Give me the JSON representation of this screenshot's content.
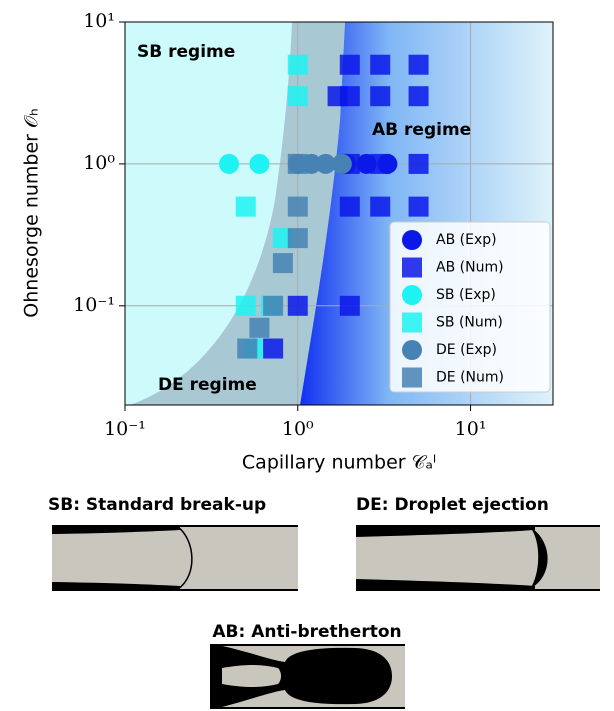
{
  "chart_data": {
    "type": "scatter",
    "xlabel": "Capillary number 𝒞ₐˡ",
    "ylabel": "Ohnesorge number 𝒪ₕ",
    "xscale": "log",
    "yscale": "log",
    "grid": true,
    "legend": "lower right",
    "xlim": [
      0.1,
      30
    ],
    "ylim": [
      0.02,
      10
    ],
    "xticks": [
      {
        "value": 0.1,
        "label": "10⁻¹"
      },
      {
        "value": 1,
        "label": "10⁰"
      },
      {
        "value": 10,
        "label": "10¹"
      }
    ],
    "yticks": [
      {
        "value": 0.1,
        "label": "10⁻¹"
      },
      {
        "value": 1,
        "label": "10⁰"
      },
      {
        "value": 10,
        "label": "10¹"
      }
    ],
    "annotations": [
      "SB regime",
      "AB regime",
      "DE regime"
    ],
    "series": [
      {
        "name": "AB (Exp)",
        "color": "#0a18e8",
        "marker": "circle",
        "x": [
          1.9,
          2.5,
          3.3
        ],
        "y": [
          1,
          1,
          1
        ]
      },
      {
        "name": "AB (Num)",
        "color": "#0a18e8",
        "marker": "square",
        "x": [
          2,
          3,
          5,
          1.7,
          2,
          3,
          5,
          2,
          3,
          5,
          2,
          3,
          5,
          1.0,
          2,
          0.72
        ],
        "y": [
          5,
          5,
          5,
          3,
          3,
          3,
          3,
          1,
          1,
          1,
          0.5,
          0.5,
          0.5,
          0.1,
          0.1,
          0.05
        ]
      },
      {
        "name": "SB (Exp)",
        "color": "#1ef2f2",
        "marker": "circle",
        "x": [
          0.4,
          0.6
        ],
        "y": [
          1,
          1
        ]
      },
      {
        "name": "SB (Num)",
        "color": "#1ef2f2",
        "marker": "square",
        "x": [
          1,
          1,
          0.5,
          0.82,
          0.5,
          0.7,
          0.55
        ],
        "y": [
          5,
          3,
          0.5,
          0.3,
          0.1,
          0.1,
          0.05
        ]
      },
      {
        "name": "DE (Exp)",
        "color": "#4682b4",
        "marker": "circle",
        "x": [
          1.0,
          1.2,
          1.45,
          1.8
        ],
        "y": [
          1,
          1,
          1,
          1
        ]
      },
      {
        "name": "DE (Num)",
        "color": "#4682b4",
        "marker": "square",
        "x": [
          1.0,
          1.0,
          0.82,
          0.72,
          0.6,
          0.51,
          1.0
        ],
        "y": [
          0.5,
          0.3,
          0.2,
          0.1,
          0.07,
          0.05,
          1.0
        ]
      }
    ]
  },
  "panels": [
    {
      "title": "SB: Standard break-up"
    },
    {
      "title": "DE: Droplet ejection"
    },
    {
      "title": "AB: Anti-bretherton"
    }
  ]
}
